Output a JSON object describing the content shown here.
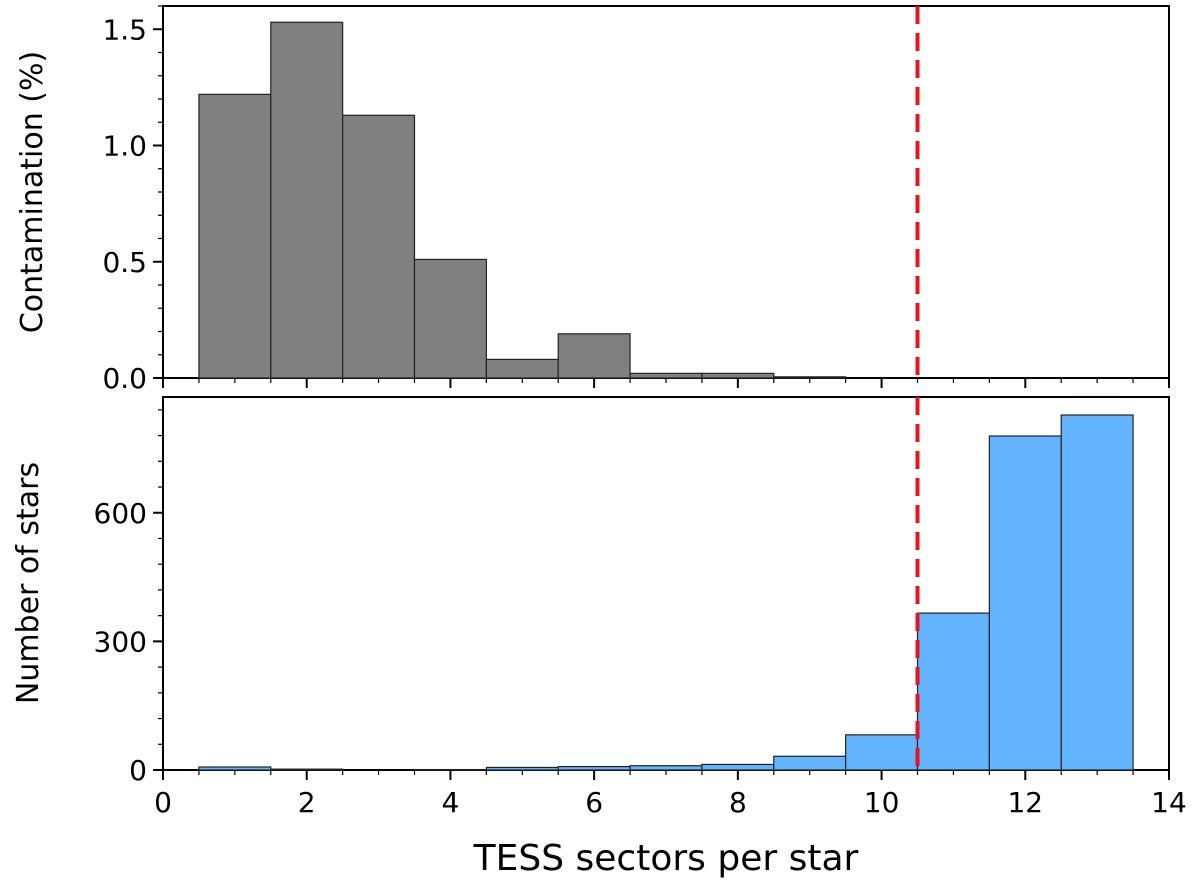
{
  "chart_data": [
    {
      "type": "bar",
      "panel": "top",
      "title": "",
      "xlabel": "",
      "ylabel": "Contamination (%)",
      "xlim": [
        0,
        14
      ],
      "ylim": [
        0,
        1.6
      ],
      "yticks": [
        0.0,
        0.5,
        1.0,
        1.5
      ],
      "ytick_labels": [
        "0.0",
        "0.5",
        "1.0",
        "1.5"
      ],
      "bin_width": 1,
      "x": [
        1,
        2,
        3,
        4,
        5,
        6,
        7,
        8,
        9,
        10,
        11,
        12,
        13
      ],
      "values": [
        1.22,
        1.53,
        1.13,
        0.51,
        0.08,
        0.19,
        0.02,
        0.02,
        0.005,
        0,
        0,
        0,
        0
      ],
      "bar_color": "#808080",
      "threshold_x": 10.5,
      "threshold_color": "#e8141b"
    },
    {
      "type": "bar",
      "panel": "bottom",
      "title": "",
      "xlabel": "TESS sectors per star",
      "ylabel": "Number of stars",
      "xlim": [
        0,
        14
      ],
      "ylim": [
        0,
        870
      ],
      "xticks": [
        0,
        2,
        4,
        6,
        8,
        10,
        12,
        14
      ],
      "xtick_labels": [
        "0",
        "2",
        "4",
        "6",
        "8",
        "10",
        "12",
        "14"
      ],
      "yticks": [
        0,
        300,
        600
      ],
      "ytick_labels": [
        "0",
        "300",
        "600"
      ],
      "bin_width": 1,
      "x": [
        1,
        2,
        3,
        4,
        5,
        6,
        7,
        8,
        9,
        10,
        11,
        12,
        13
      ],
      "values": [
        7,
        2,
        0,
        1,
        6,
        8,
        10,
        13,
        32,
        82,
        366,
        779,
        828
      ],
      "bar_color": "#63b3ff",
      "threshold_x": 10.5,
      "threshold_color": "#e8141b"
    }
  ]
}
